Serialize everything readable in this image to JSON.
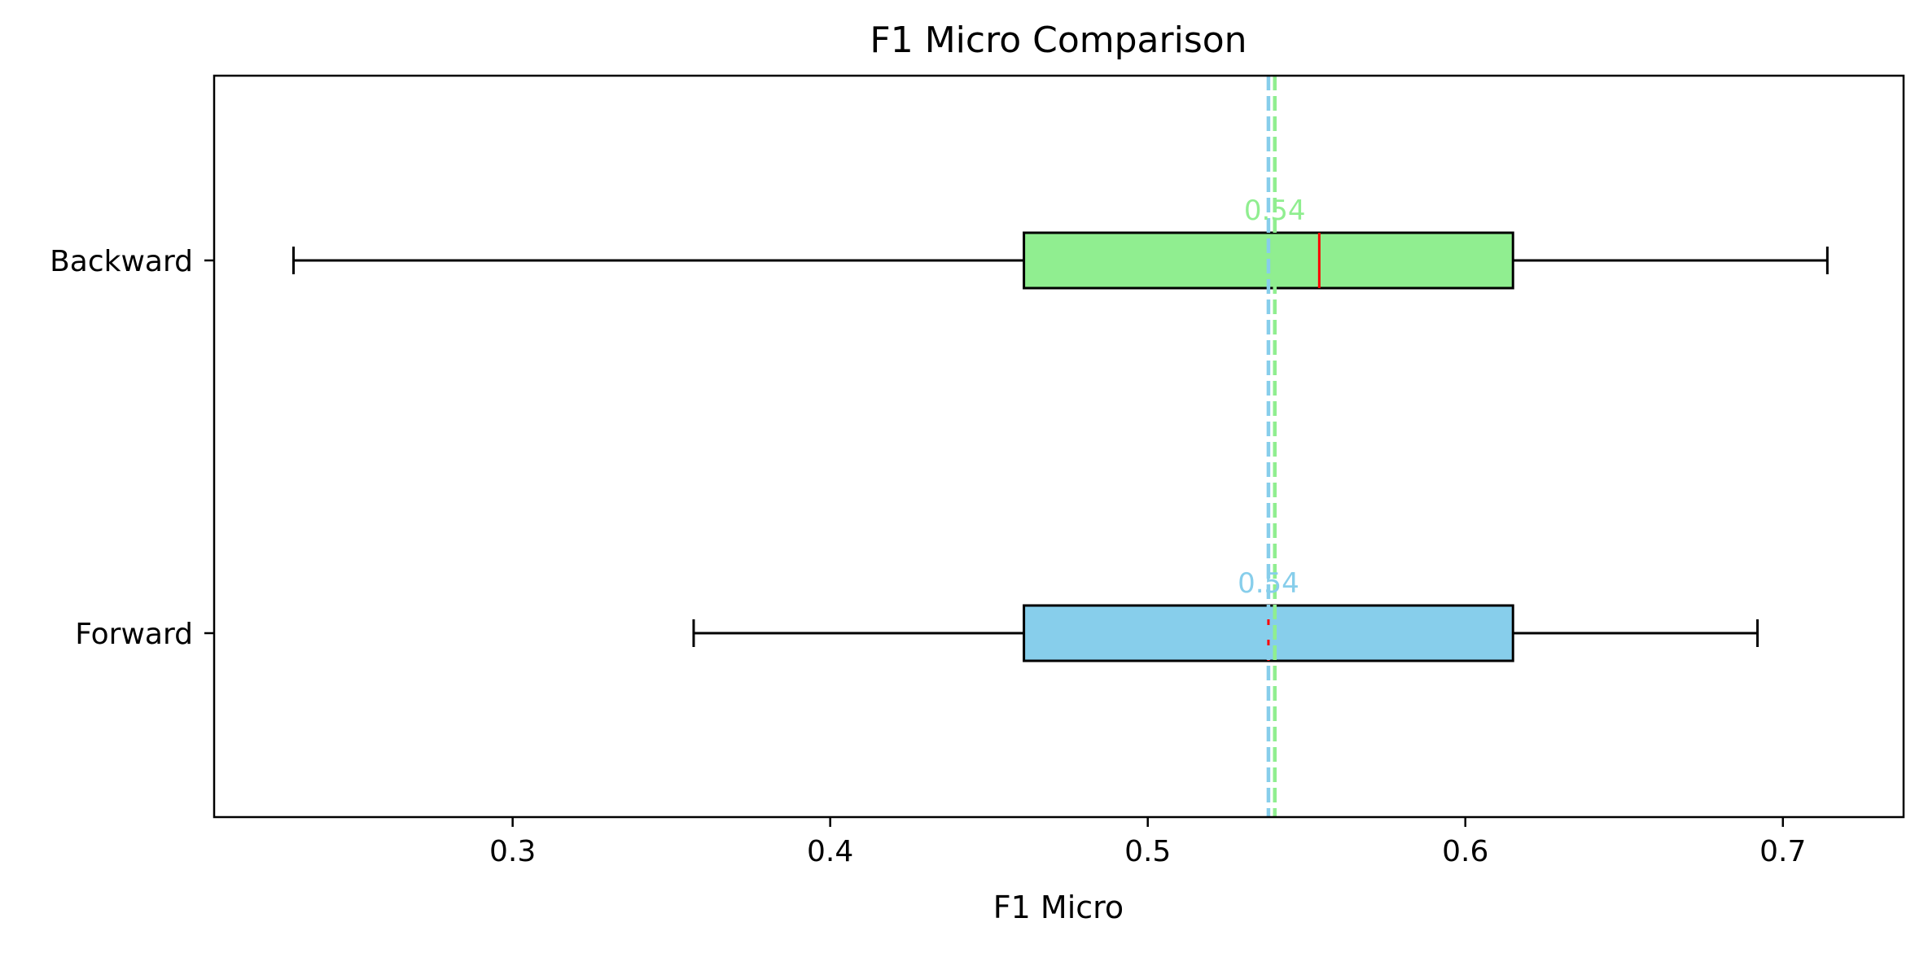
{
  "chart_data": {
    "type": "boxplot",
    "orientation": "horizontal",
    "title": "F1 Micro Comparison",
    "xlabel": "F1 Micro",
    "ylabel": "",
    "xlim": [
      0.206,
      0.738
    ],
    "xticks": [
      0.3,
      0.4,
      0.5,
      0.6,
      0.7
    ],
    "xtick_labels": [
      "0.3",
      "0.4",
      "0.5",
      "0.6",
      "0.7"
    ],
    "grid": false,
    "categories": [
      "Forward",
      "Backward"
    ],
    "series": [
      {
        "name": "Forward",
        "color": "#87ceeb",
        "whisker_low": 0.357,
        "q1": 0.461,
        "median": 0.538,
        "q3": 0.615,
        "whisker_high": 0.692,
        "mean": 0.538,
        "mean_label": "0.54"
      },
      {
        "name": "Backward",
        "color": "#90ee90",
        "whisker_low": 0.231,
        "q1": 0.461,
        "median": 0.554,
        "q3": 0.615,
        "whisker_high": 0.714,
        "mean": 0.54,
        "mean_label": "0.54"
      }
    ],
    "median_color": "#ff0000",
    "edge_color": "#000000"
  }
}
